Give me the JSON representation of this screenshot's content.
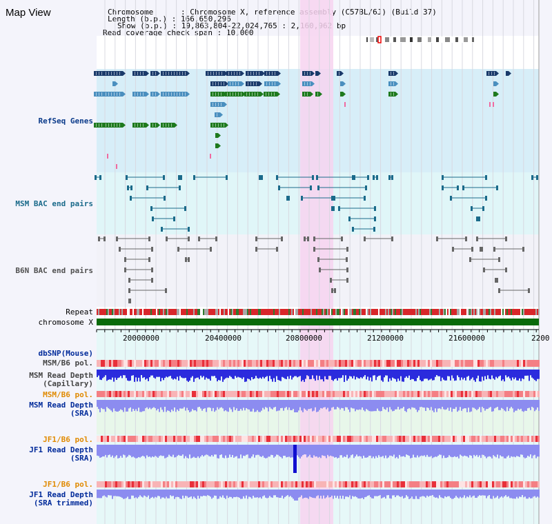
{
  "title": "Map View",
  "info": {
    "chromosome_key": "Chromosome",
    "chromosome_val": ": Chromosome X, reference assembly (C57BL/6J) (Build 37)",
    "length_key": "Length (b.p.)",
    "length_val": ": 166,650,296",
    "show_key": "Show (b.p.)",
    "show_val": ": 19,863,804-22,024,765 : 2,160,962 bp",
    "coverage_key": "Read coverage check span",
    "coverage_val": ": 10,000"
  },
  "tracks": {
    "refseq": "RefSeq Genes",
    "msm_bac": "MSM BAC end pairs",
    "b6n_bac": "B6N BAC end pairs",
    "repeat": "Repeat",
    "chromosome": "chromosome X"
  },
  "axis": {
    "ticks": [
      "20000000",
      "20400000",
      "20800000",
      "21200000",
      "21600000",
      "2200"
    ]
  },
  "lower_tracks": {
    "dbsnp": "dbSNP(Mouse)",
    "msm_b6_pol_1": "MSM/B6 pol.",
    "msm_read_depth_cap_1": "MSM Read Depth",
    "msm_read_depth_cap_2": "(Capillary)",
    "msm_b6_pol_2": "MSM/B6 pol.",
    "msm_read_depth_sra_1": "MSM Read Depth",
    "msm_read_depth_sra_2": "(SRA)",
    "jf1_b6_pol_1": "JF1/B6 pol.",
    "jf1_read_depth_sra_1": "JF1 Read Depth",
    "jf1_read_depth_sra_2": "(SRA)",
    "jf1_b6_pol_2": "JF1/B6 pol.",
    "jf1_read_depth_trim_1": "JF1 Read Depth",
    "jf1_read_depth_trim_2": "(SRA trimmed)"
  },
  "colors": {
    "refseq_bg": "#d7eef8",
    "msm_bg": "#e0f6f8",
    "b6n_bg": "#f2f2f8",
    "highlight": "#f7d4f0",
    "gene_navy": "#1a3a6a",
    "gene_blue": "#4a8fbf",
    "gene_green": "#1e7a1e",
    "chrom_green": "#0a6a0a",
    "depth_blue": "#2b2bdd",
    "depth_light": "#8c8cf0"
  }
}
